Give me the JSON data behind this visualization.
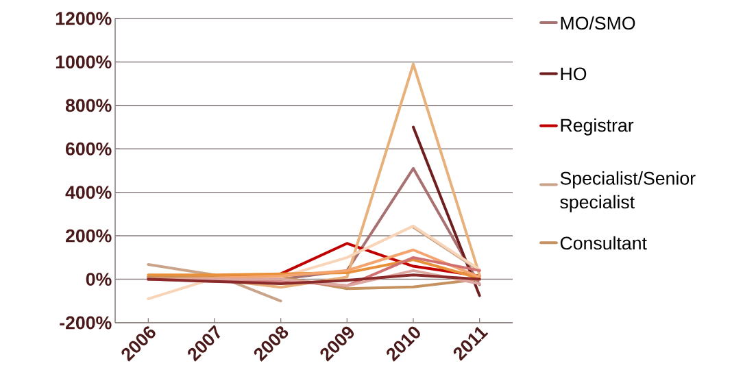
{
  "chart_data": {
    "type": "line",
    "categories": [
      "2006",
      "2007",
      "2008",
      "2009",
      "2010",
      "2011"
    ],
    "series": [
      {
        "name": "MO/SMO",
        "color": "#a87070",
        "values": [
          0,
          -5,
          0,
          40,
          510,
          -25
        ]
      },
      {
        "name": "HO",
        "color": "#6e1e1e",
        "values": [
          null,
          null,
          null,
          null,
          700,
          -75
        ]
      },
      {
        "name": "Registrar",
        "color": "#c00000",
        "values": [
          10,
          10,
          25,
          165,
          60,
          15
        ]
      },
      {
        "name": "Specialist/Senior specialist",
        "color": "#c9a48a",
        "values": [
          68,
          20,
          -100,
          null,
          240,
          40
        ]
      },
      {
        "name": "Consultant",
        "color": "#c4915f",
        "values": [
          10,
          10,
          10,
          -43,
          -35,
          0
        ]
      },
      {
        "color": "#e8b07a",
        "values": [
          0,
          0,
          -37,
          10,
          990,
          20
        ]
      },
      {
        "color": "#f8d5b8",
        "values": [
          -90,
          5,
          10,
          100,
          245,
          45
        ]
      },
      {
        "color": "#e8903a",
        "values": [
          20,
          20,
          25,
          30,
          90,
          5
        ]
      },
      {
        "color": "#f4a46e",
        "values": [
          0,
          5,
          15,
          40,
          135,
          10
        ]
      },
      {
        "color": "#d07070",
        "values": [
          0,
          -10,
          -5,
          -30,
          100,
          40
        ]
      },
      {
        "color": "#dca8a0",
        "values": [
          0,
          0,
          0,
          -30,
          40,
          -20
        ]
      },
      {
        "color": "#8b2a2a",
        "values": [
          0,
          -10,
          -20,
          -5,
          20,
          0
        ]
      }
    ],
    "ylim": [
      -200,
      1200
    ],
    "yticks": [
      {
        "value": -200,
        "label": "-200%"
      },
      {
        "value": 0,
        "label": "0%"
      },
      {
        "value": 200,
        "label": "200%"
      },
      {
        "value": 400,
        "label": "400%"
      },
      {
        "value": 600,
        "label": "600%"
      },
      {
        "value": 800,
        "label": "800%"
      },
      {
        "value": 1000,
        "label": "1000%"
      },
      {
        "value": 1200,
        "label": "1200%"
      }
    ],
    "grid": "y",
    "legend": "right",
    "marker": "none",
    "line_style": "solid"
  }
}
